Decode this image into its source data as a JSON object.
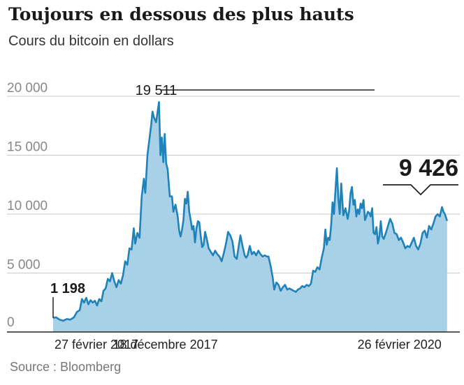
{
  "chart_data": {
    "type": "area",
    "title": "Toujours en dessous des plus hauts",
    "subtitle": "Cours du bitcoin en dollars",
    "source": "Source : Bloomberg",
    "ylim": [
      0,
      20000
    ],
    "yticks": [
      {
        "value": 0,
        "label": "0"
      },
      {
        "value": 5000,
        "label": "5 000"
      },
      {
        "value": 10000,
        "label": "10 000"
      },
      {
        "value": 15000,
        "label": "15 000"
      },
      {
        "value": 20000,
        "label": "20 000"
      }
    ],
    "xlim": [
      0,
      1110
    ],
    "xticks": [
      {
        "value": 0,
        "label": "27 février 2017"
      },
      {
        "value": 294,
        "label": "18 décembre 2017"
      },
      {
        "value": 1094,
        "label": "26 février 2020"
      }
    ],
    "annotations": [
      {
        "label": "1 198",
        "x": 0,
        "y": 1198,
        "style": "bold"
      },
      {
        "label": "19 511",
        "x": 294,
        "y": 19511,
        "style": "regular"
      },
      {
        "label": "9 426",
        "x": 1094,
        "y": 9426,
        "style": "big"
      }
    ],
    "series": [
      {
        "name": "Bitcoin",
        "color": "#1f82b8",
        "fill": "#a8d0e6",
        "points": [
          [
            0,
            1198
          ],
          [
            8,
            1250
          ],
          [
            18,
            1050
          ],
          [
            28,
            950
          ],
          [
            38,
            1100
          ],
          [
            48,
            1050
          ],
          [
            58,
            1250
          ],
          [
            66,
            1700
          ],
          [
            74,
            1850
          ],
          [
            80,
            2800
          ],
          [
            86,
            2500
          ],
          [
            92,
            2900
          ],
          [
            98,
            2350
          ],
          [
            104,
            2700
          ],
          [
            110,
            2500
          ],
          [
            116,
            2650
          ],
          [
            122,
            2250
          ],
          [
            128,
            2800
          ],
          [
            134,
            2600
          ],
          [
            140,
            3500
          ],
          [
            146,
            3700
          ],
          [
            152,
            4500
          ],
          [
            158,
            4300
          ],
          [
            164,
            5000
          ],
          [
            170,
            4300
          ],
          [
            176,
            3800
          ],
          [
            182,
            4400
          ],
          [
            188,
            4100
          ],
          [
            194,
            4800
          ],
          [
            200,
            6000
          ],
          [
            206,
            5700
          ],
          [
            212,
            7100
          ],
          [
            218,
            7000
          ],
          [
            224,
            8800
          ],
          [
            228,
            7500
          ],
          [
            234,
            8400
          ],
          [
            240,
            8000
          ],
          [
            246,
            11500
          ],
          [
            252,
            13000
          ],
          [
            256,
            11800
          ],
          [
            262,
            15000
          ],
          [
            268,
            16500
          ],
          [
            272,
            17500
          ],
          [
            276,
            18700
          ],
          [
            280,
            18200
          ],
          [
            286,
            17800
          ],
          [
            294,
            19511
          ],
          [
            298,
            15000
          ],
          [
            302,
            16500
          ],
          [
            306,
            14400
          ],
          [
            310,
            16800
          ],
          [
            314,
            14300
          ],
          [
            318,
            13800
          ],
          [
            324,
            11500
          ],
          [
            330,
            11500
          ],
          [
            334,
            10200
          ],
          [
            340,
            10800
          ],
          [
            346,
            9800
          ],
          [
            350,
            8600
          ],
          [
            354,
            8100
          ],
          [
            358,
            8700
          ],
          [
            362,
            9500
          ],
          [
            366,
            11300
          ],
          [
            370,
            10900
          ],
          [
            374,
            11900
          ],
          [
            378,
            10200
          ],
          [
            382,
            9500
          ],
          [
            386,
            8700
          ],
          [
            390,
            9000
          ],
          [
            394,
            7600
          ],
          [
            398,
            8800
          ],
          [
            402,
            9400
          ],
          [
            406,
            9300
          ],
          [
            410,
            8100
          ],
          [
            414,
            7200
          ],
          [
            418,
            7400
          ],
          [
            422,
            8500
          ],
          [
            426,
            8000
          ],
          [
            432,
            7100
          ],
          [
            438,
            6800
          ],
          [
            444,
            6500
          ],
          [
            450,
            6900
          ],
          [
            456,
            6600
          ],
          [
            462,
            6400
          ],
          [
            468,
            6000
          ],
          [
            474,
            6700
          ],
          [
            480,
            7500
          ],
          [
            486,
            8500
          ],
          [
            492,
            8200
          ],
          [
            498,
            7700
          ],
          [
            504,
            6400
          ],
          [
            510,
            6200
          ],
          [
            516,
            7400
          ],
          [
            520,
            8200
          ],
          [
            526,
            7300
          ],
          [
            532,
            6500
          ],
          [
            536,
            6300
          ],
          [
            540,
            6500
          ],
          [
            546,
            7300
          ],
          [
            552,
            6600
          ],
          [
            558,
            6800
          ],
          [
            564,
            6500
          ],
          [
            570,
            6900
          ],
          [
            576,
            6600
          ],
          [
            582,
            6400
          ],
          [
            588,
            6500
          ],
          [
            594,
            6400
          ],
          [
            598,
            6400
          ],
          [
            604,
            5600
          ],
          [
            610,
            4600
          ],
          [
            614,
            3600
          ],
          [
            620,
            4200
          ],
          [
            626,
            4000
          ],
          [
            632,
            3500
          ],
          [
            638,
            3800
          ],
          [
            644,
            4000
          ],
          [
            650,
            3600
          ],
          [
            656,
            3700
          ],
          [
            662,
            3600
          ],
          [
            668,
            3500
          ],
          [
            674,
            3400
          ],
          [
            680,
            3600
          ],
          [
            686,
            3700
          ],
          [
            692,
            3900
          ],
          [
            698,
            3800
          ],
          [
            704,
            4000
          ],
          [
            710,
            3900
          ],
          [
            716,
            4100
          ],
          [
            722,
            5200
          ],
          [
            728,
            5100
          ],
          [
            734,
            5500
          ],
          [
            740,
            5300
          ],
          [
            746,
            6300
          ],
          [
            752,
            7100
          ],
          [
            756,
            8700
          ],
          [
            760,
            7400
          ],
          [
            764,
            8000
          ],
          [
            768,
            7800
          ],
          [
            772,
            9000
          ],
          [
            776,
            11000
          ],
          [
            780,
            10000
          ],
          [
            784,
            12000
          ],
          [
            788,
            13900
          ],
          [
            792,
            11400
          ],
          [
            796,
            10000
          ],
          [
            800,
            12600
          ],
          [
            806,
            9900
          ],
          [
            812,
            10500
          ],
          [
            818,
            9600
          ],
          [
            822,
            10300
          ],
          [
            826,
            11800
          ],
          [
            830,
            12300
          ],
          [
            834,
            10800
          ],
          [
            838,
            11200
          ],
          [
            842,
            9800
          ],
          [
            846,
            10400
          ],
          [
            850,
            10000
          ],
          [
            854,
            10900
          ],
          [
            858,
            10500
          ],
          [
            862,
            11200
          ],
          [
            866,
            9500
          ],
          [
            870,
            9800
          ],
          [
            874,
            10200
          ],
          [
            878,
            10100
          ],
          [
            882,
            9800
          ],
          [
            886,
            10500
          ],
          [
            890,
            8400
          ],
          [
            894,
            8300
          ],
          [
            898,
            8900
          ],
          [
            902,
            7500
          ],
          [
            906,
            8100
          ],
          [
            910,
            9400
          ],
          [
            914,
            8100
          ],
          [
            918,
            7900
          ],
          [
            924,
            8400
          ],
          [
            930,
            9000
          ],
          [
            936,
            9600
          ],
          [
            942,
            9200
          ],
          [
            948,
            8400
          ],
          [
            954,
            8300
          ],
          [
            960,
            7800
          ],
          [
            966,
            8000
          ],
          [
            972,
            7600
          ],
          [
            978,
            7100
          ],
          [
            984,
            7300
          ],
          [
            990,
            7200
          ],
          [
            996,
            7600
          ],
          [
            1002,
            8000
          ],
          [
            1008,
            7300
          ],
          [
            1014,
            7000
          ],
          [
            1020,
            7500
          ],
          [
            1026,
            8400
          ],
          [
            1032,
            8600
          ],
          [
            1038,
            8000
          ],
          [
            1044,
            9000
          ],
          [
            1050,
            8700
          ],
          [
            1056,
            9200
          ],
          [
            1062,
            9800
          ],
          [
            1068,
            10000
          ],
          [
            1074,
            9800
          ],
          [
            1080,
            10600
          ],
          [
            1084,
            10200
          ],
          [
            1088,
            10000
          ],
          [
            1094,
            9426
          ]
        ]
      }
    ]
  }
}
